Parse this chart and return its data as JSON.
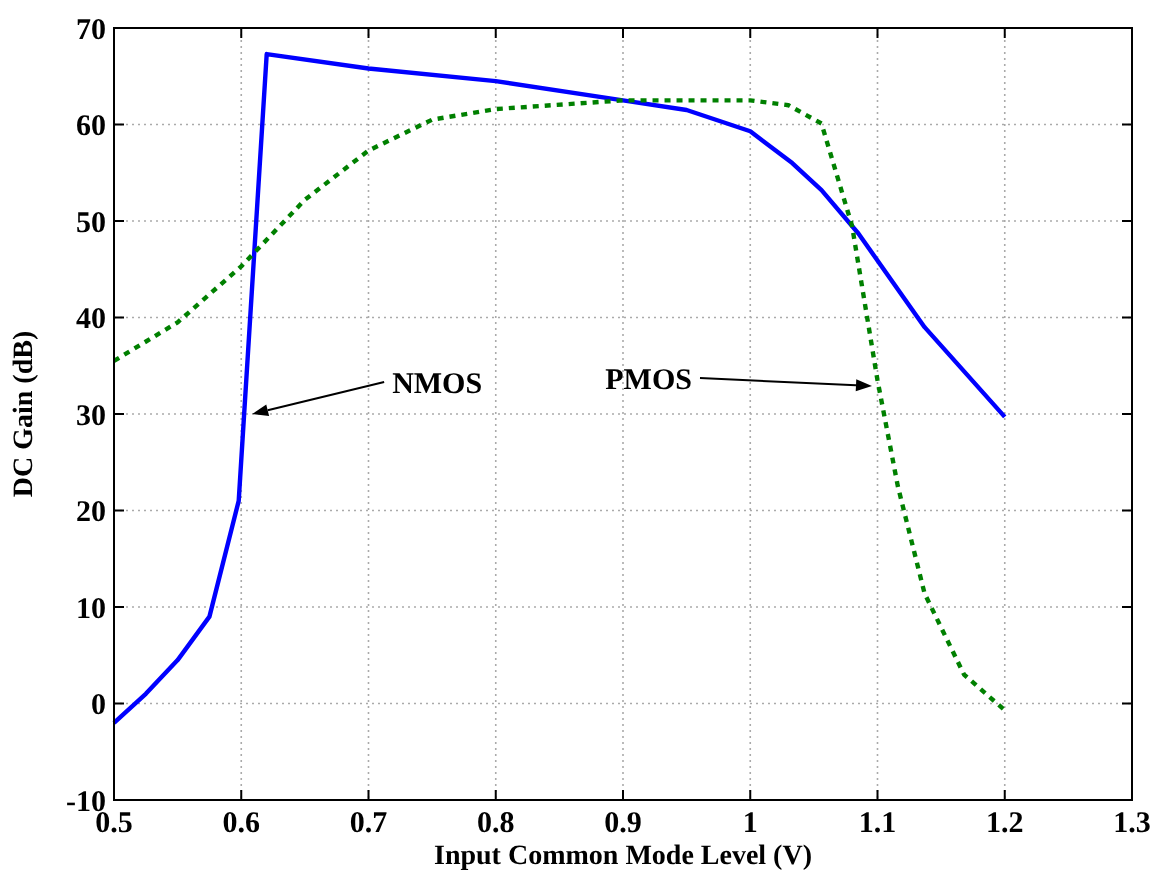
{
  "chart_data": {
    "type": "line",
    "xlabel": "Input Common Mode Level (V)",
    "ylabel": "DC Gain (dB)",
    "xlim": [
      0.5,
      1.3
    ],
    "xticks": [
      0.5,
      0.6,
      0.7,
      0.8,
      0.9,
      1,
      1.1,
      1.2,
      1.3
    ],
    "ylim": [
      -10,
      70
    ],
    "yticks": [
      -10,
      0,
      10,
      20,
      30,
      40,
      50,
      60,
      70
    ],
    "grid": true,
    "series": [
      {
        "color": "#0000ff",
        "line_style": "solid",
        "x": [
          0.5,
          0.525,
          0.55,
          0.575,
          0.598,
          0.62,
          0.7,
          0.8,
          0.9,
          0.95,
          1.0,
          1.033,
          1.056,
          1.085,
          1.137,
          1.2
        ],
        "values": [
          -2,
          1,
          4.5,
          9,
          21,
          67.3,
          65.8,
          64.5,
          62.5,
          61.5,
          59.3,
          56,
          53.2,
          48.7,
          39,
          29.7
        ]
      },
      {
        "color": "#008000",
        "line_style": "dotted",
        "x": [
          0.5,
          0.55,
          0.6,
          0.65,
          0.7,
          0.75,
          0.8,
          0.9,
          1.0,
          1.03,
          1.056,
          1.08,
          1.1,
          1.116,
          1.137,
          1.168,
          1.2
        ],
        "values": [
          35.5,
          39.5,
          45.3,
          52.2,
          57.3,
          60.5,
          61.6,
          62.5,
          62.5,
          62,
          60.1,
          49.5,
          33.5,
          22.5,
          11.4,
          3,
          -0.7
        ]
      }
    ],
    "annotations": [
      "NMOS",
      "PMOS"
    ]
  }
}
